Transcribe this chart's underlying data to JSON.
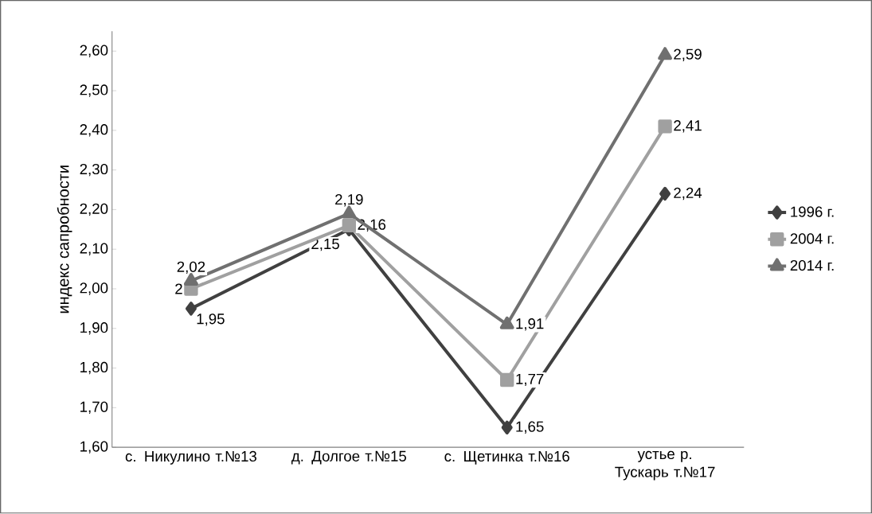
{
  "chart_data": {
    "type": "line",
    "ylabel": "индекс  сапробности",
    "categories": [
      "с. Никулино т.№13",
      "д. Долгое т.№15",
      "с. Щетинка т.№16",
      "устье р. Тускарь т.№17"
    ],
    "series": [
      {
        "name": "1996 г.",
        "color": "#404040",
        "marker": "diamond",
        "values": [
          1.95,
          2.15,
          1.65,
          2.24
        ],
        "value_labels": [
          "1,95",
          "2,15",
          "1,65",
          "2,24"
        ]
      },
      {
        "name": "2004 г.",
        "color": "#a0a0a0",
        "marker": "square",
        "values": [
          2.0,
          2.16,
          1.77,
          2.41
        ],
        "value_labels": [
          "2",
          "2,16",
          "1,77",
          "2,41"
        ]
      },
      {
        "name": "2014 г.",
        "color": "#707070",
        "marker": "triangle",
        "values": [
          2.02,
          2.19,
          1.91,
          2.59
        ],
        "value_labels": [
          "2,02",
          "2,19",
          "1,91",
          "2,59"
        ]
      }
    ],
    "ylim": [
      1.6,
      2.65
    ],
    "yticks": [
      {
        "value": 1.6,
        "label": "1,60"
      },
      {
        "value": 1.7,
        "label": "1,70"
      },
      {
        "value": 1.8,
        "label": "1,80"
      },
      {
        "value": 1.9,
        "label": "1,90"
      },
      {
        "value": 2.0,
        "label": "2,00"
      },
      {
        "value": 2.1,
        "label": "2,10"
      },
      {
        "value": 2.2,
        "label": "2,20"
      },
      {
        "value": 2.3,
        "label": "2,30"
      },
      {
        "value": 2.4,
        "label": "2,40"
      },
      {
        "value": 2.5,
        "label": "2,50"
      },
      {
        "value": 2.6,
        "label": "2,60"
      }
    ],
    "grid": false,
    "legend": "right",
    "line_style": "solid"
  }
}
